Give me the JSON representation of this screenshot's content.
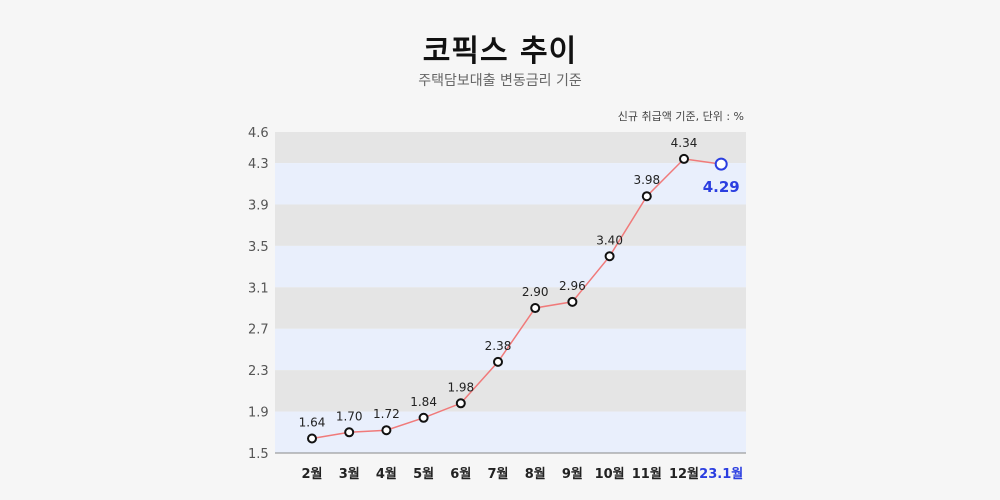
{
  "chart_data": {
    "type": "line",
    "title": "코픽스 추이",
    "subtitle": "주택담보대출 변동금리 기준",
    "note": "신규 취급액 기준, 단위 : %",
    "categories": [
      "2월",
      "3월",
      "4월",
      "5월",
      "6월",
      "7월",
      "8월",
      "9월",
      "10월",
      "11월",
      "12월",
      "23.1월"
    ],
    "series": [
      {
        "values": [
          1.64,
          1.7,
          1.72,
          1.84,
          1.98,
          2.38,
          2.9,
          2.96,
          3.4,
          3.98,
          4.34,
          4.29
        ],
        "labels": [
          "1.64",
          "1.70",
          "1.72",
          "1.84",
          "1.98",
          "2.38",
          "2.90",
          "2.96",
          "3.40",
          "3.98",
          "4.34",
          "4.29"
        ]
      }
    ],
    "yticks": [
      "1.5",
      "1.9",
      "2.3",
      "2.7",
      "3.1",
      "3.5",
      "3.9",
      "4.3",
      "4.6"
    ],
    "ylim": [
      1.5,
      4.6
    ],
    "line_color": "#f07a7a",
    "highlight_color": "#2b3ee0",
    "band_colors": [
      "#e9effc",
      "#e5e5e5"
    ]
  }
}
